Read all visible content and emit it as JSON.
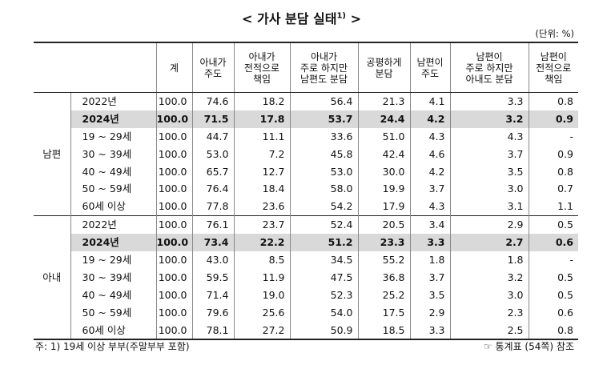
{
  "title": {
    "prefix": "<",
    "text": "가사 분담 실태",
    "note": "1)",
    "suffix": ">"
  },
  "unit": "(단위: %)",
  "table": {
    "columns": [
      "계",
      "아내가\n주도",
      "아내가\n전적으로\n책임",
      "아내가\n주로 하지만\n남편도 분담",
      "공평하게\n분담",
      "남편이\n주도",
      "남편이\n주로 하지만\n아내도 분담",
      "남편이\n전적으로\n책임"
    ],
    "groups": [
      {
        "label": "남편",
        "rows": [
          {
            "label": "2022년",
            "values": [
              "100.0",
              "74.6",
              "18.2",
              "56.4",
              "21.3",
              "4.1",
              "3.3",
              "0.8"
            ]
          },
          {
            "label": "2024년",
            "highlight": true,
            "values": [
              "100.0",
              "71.5",
              "17.8",
              "53.7",
              "24.4",
              "4.2",
              "3.2",
              "0.9"
            ]
          },
          {
            "label": "19 ~ 29세",
            "values": [
              "100.0",
              "44.7",
              "11.1",
              "33.6",
              "51.0",
              "4.3",
              "4.3",
              "-"
            ]
          },
          {
            "label": "30 ~ 39세",
            "values": [
              "100.0",
              "53.0",
              "7.2",
              "45.8",
              "42.4",
              "4.6",
              "3.7",
              "0.9"
            ]
          },
          {
            "label": "40 ~ 49세",
            "values": [
              "100.0",
              "65.7",
              "12.7",
              "53.0",
              "30.0",
              "4.2",
              "3.5",
              "0.8"
            ]
          },
          {
            "label": "50 ~ 59세",
            "values": [
              "100.0",
              "76.4",
              "18.4",
              "58.0",
              "19.9",
              "3.7",
              "3.0",
              "0.7"
            ]
          },
          {
            "label": "60세 이상",
            "values": [
              "100.0",
              "77.8",
              "23.6",
              "54.2",
              "17.9",
              "4.3",
              "3.1",
              "1.1"
            ]
          }
        ]
      },
      {
        "label": "아내",
        "rows": [
          {
            "label": "2022년",
            "values": [
              "100.0",
              "76.1",
              "23.7",
              "52.4",
              "20.5",
              "3.4",
              "2.9",
              "0.5"
            ]
          },
          {
            "label": "2024년",
            "highlight": true,
            "values": [
              "100.0",
              "73.4",
              "22.2",
              "51.2",
              "23.3",
              "3.3",
              "2.7",
              "0.6"
            ]
          },
          {
            "label": "19 ~ 29세",
            "values": [
              "100.0",
              "43.0",
              "8.5",
              "34.5",
              "55.2",
              "1.8",
              "1.8",
              "-"
            ]
          },
          {
            "label": "30 ~ 39세",
            "values": [
              "100.0",
              "59.5",
              "11.9",
              "47.5",
              "36.8",
              "3.7",
              "3.2",
              "0.5"
            ]
          },
          {
            "label": "40 ~ 49세",
            "values": [
              "100.0",
              "71.4",
              "19.0",
              "52.3",
              "25.2",
              "3.5",
              "3.0",
              "0.5"
            ]
          },
          {
            "label": "50 ~ 59세",
            "values": [
              "100.0",
              "79.6",
              "25.6",
              "54.0",
              "17.5",
              "2.9",
              "2.3",
              "0.6"
            ]
          },
          {
            "label": "60세 이상",
            "values": [
              "100.0",
              "78.1",
              "27.2",
              "50.9",
              "18.5",
              "3.3",
              "2.5",
              "0.8"
            ]
          }
        ]
      }
    ]
  },
  "footer": {
    "note": "주: 1) 19세 이상 부부(주말부부 포함)",
    "source": "☞ 통계표 (54쪽) 참조"
  }
}
